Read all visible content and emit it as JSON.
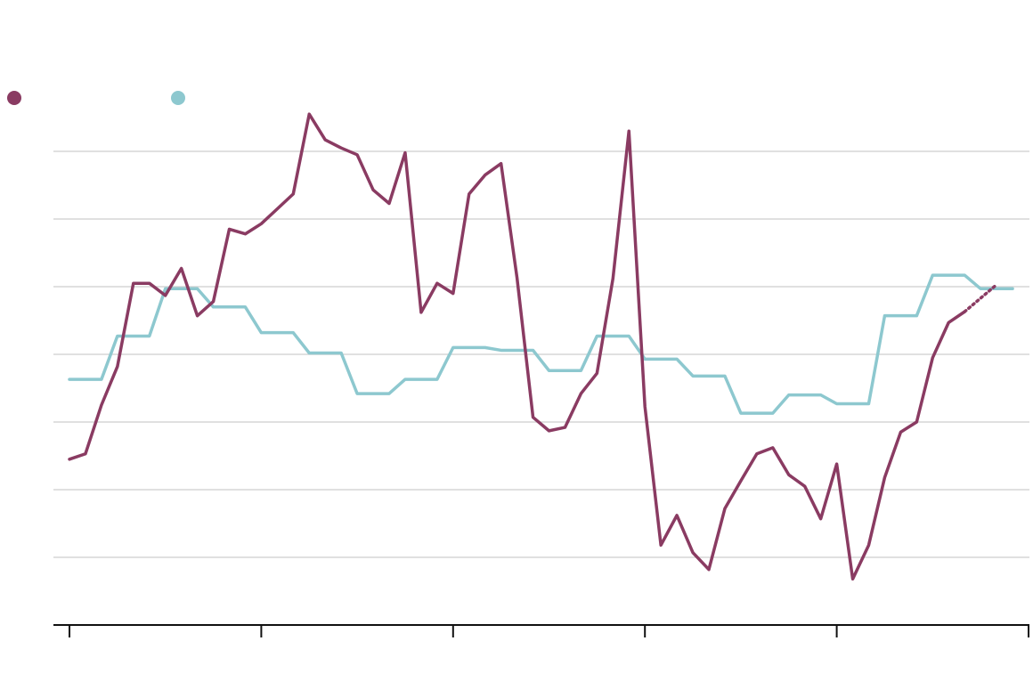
{
  "chart_data": {
    "type": "line",
    "title": "",
    "xlabel": "",
    "ylabel": "",
    "grid": true,
    "legend_placement": "top-left",
    "ylim": [
      0,
      7
    ],
    "y_gridlines": [
      1,
      2,
      3,
      4,
      5,
      6,
      7
    ],
    "x_ticks": [
      0,
      12,
      24,
      36,
      48,
      60
    ],
    "x_tick_labels": [
      "",
      "",
      "",
      "",
      "",
      ""
    ],
    "series": [
      {
        "name": "",
        "color": "#8a3b62",
        "dotted_from_index": 56,
        "values": [
          2.45,
          2.53,
          3.25,
          3.82,
          5.05,
          5.05,
          4.87,
          5.27,
          4.57,
          4.78,
          5.85,
          5.78,
          5.93,
          6.15,
          6.37,
          7.55,
          7.17,
          7.05,
          6.95,
          6.43,
          6.23,
          6.98,
          4.62,
          5.05,
          4.9,
          6.37,
          6.65,
          6.82,
          5.13,
          3.07,
          2.87,
          2.92,
          3.42,
          3.72,
          5.12,
          7.3,
          3.23,
          1.18,
          1.62,
          1.07,
          0.82,
          1.72,
          2.13,
          2.53,
          2.62,
          2.22,
          2.05,
          1.57,
          2.38,
          0.68,
          1.18,
          2.18,
          2.85,
          3.0,
          3.95,
          4.47,
          4.63,
          4.83,
          5.03
        ]
      },
      {
        "name": "",
        "color": "#8dc8cf",
        "dotted_from_index": null,
        "values": [
          3.63,
          3.63,
          3.63,
          4.27,
          4.27,
          4.27,
          4.97,
          4.97,
          4.97,
          4.7,
          4.7,
          4.7,
          4.32,
          4.32,
          4.32,
          4.02,
          4.02,
          4.02,
          3.42,
          3.42,
          3.42,
          3.63,
          3.63,
          3.63,
          4.1,
          4.1,
          4.1,
          4.06,
          4.06,
          4.06,
          3.76,
          3.76,
          3.76,
          4.27,
          4.27,
          4.27,
          3.93,
          3.93,
          3.93,
          3.68,
          3.68,
          3.68,
          3.13,
          3.13,
          3.13,
          3.4,
          3.4,
          3.4,
          3.27,
          3.27,
          3.27,
          4.57,
          4.57,
          4.57,
          5.17,
          5.17,
          5.17,
          4.97,
          4.97,
          4.97
        ]
      }
    ]
  }
}
